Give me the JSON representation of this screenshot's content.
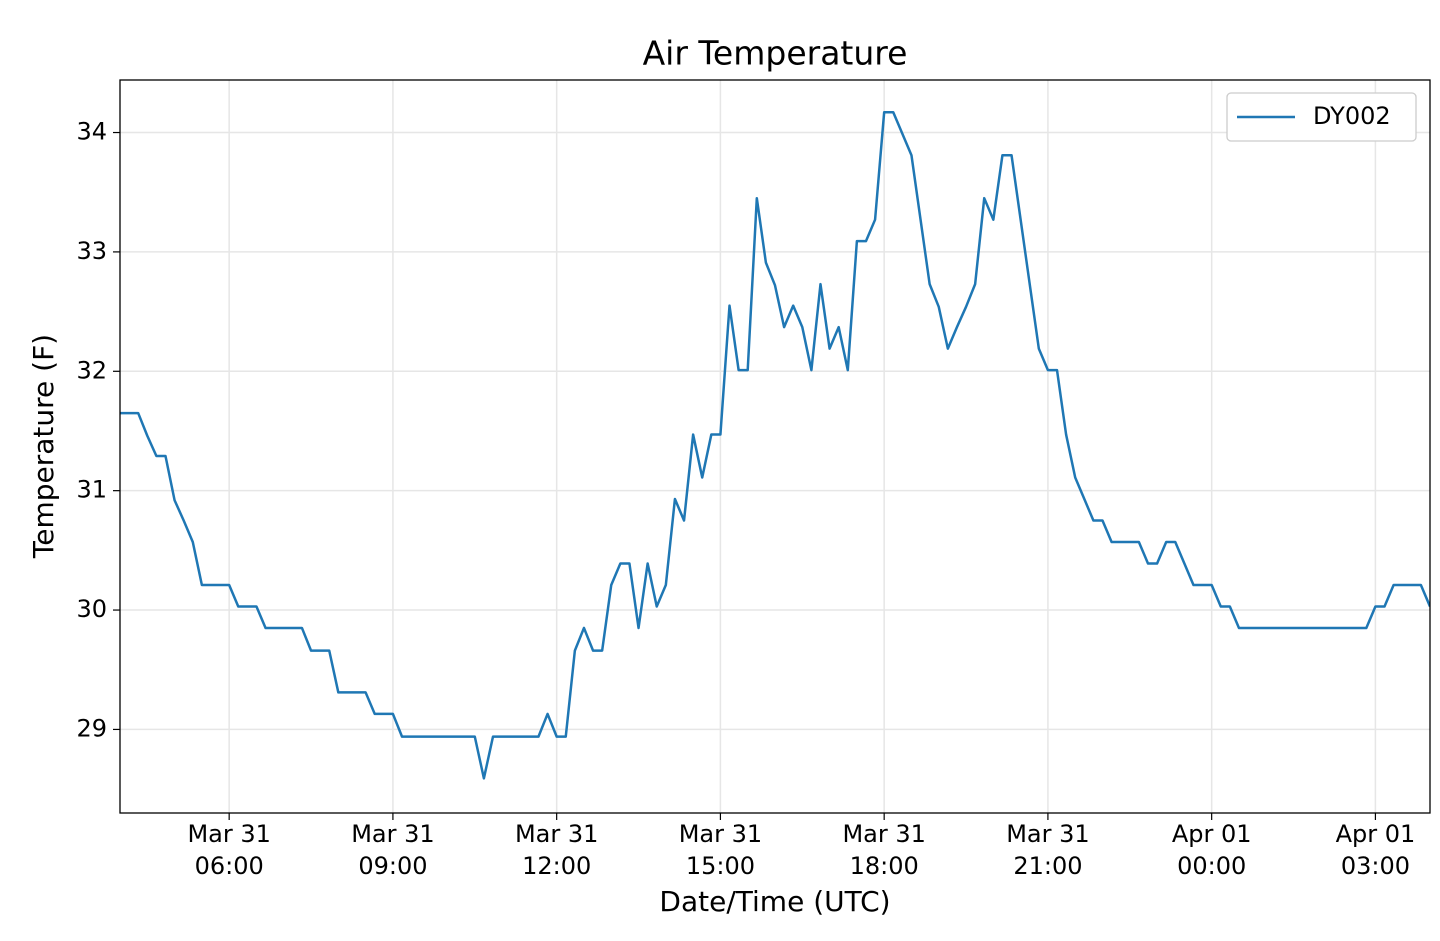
{
  "chart_data": {
    "type": "line",
    "title": "Air Temperature",
    "x_label": "Date/Time (UTC)",
    "y_label": "Temperature (F)",
    "x": [
      "Mar 31 04:00",
      "Mar 31 04:20",
      "Mar 31 04:30",
      "Mar 31 04:40",
      "Mar 31 04:50",
      "Mar 31 05:00",
      "Mar 31 05:10",
      "Mar 31 05:20",
      "Mar 31 05:30",
      "Mar 31 06:00",
      "Mar 31 06:10",
      "Mar 31 06:30",
      "Mar 31 06:40",
      "Mar 31 07:20",
      "Mar 31 07:30",
      "Mar 31 07:50",
      "Mar 31 08:00",
      "Mar 31 08:30",
      "Mar 31 08:40",
      "Mar 31 09:00",
      "Mar 31 09:10",
      "Mar 31 10:30",
      "Mar 31 10:40",
      "Mar 31 10:50",
      "Mar 31 11:40",
      "Mar 31 11:50",
      "Mar 31 12:00",
      "Mar 31 12:10",
      "Mar 31 12:20",
      "Mar 31 12:30",
      "Mar 31 12:40",
      "Mar 31 12:50",
      "Mar 31 13:00",
      "Mar 31 13:10",
      "Mar 31 13:20",
      "Mar 31 13:30",
      "Mar 31 13:40",
      "Mar 31 13:50",
      "Mar 31 14:00",
      "Mar 31 14:10",
      "Mar 31 14:20",
      "Mar 31 14:30",
      "Mar 31 14:40",
      "Mar 31 14:50",
      "Mar 31 15:00",
      "Mar 31 15:10",
      "Mar 31 15:20",
      "Mar 31 15:30",
      "Mar 31 15:40",
      "Mar 31 15:50",
      "Mar 31 16:00",
      "Mar 31 16:10",
      "Mar 31 16:20",
      "Mar 31 16:30",
      "Mar 31 16:40",
      "Mar 31 16:50",
      "Mar 31 17:00",
      "Mar 31 17:10",
      "Mar 31 17:20",
      "Mar 31 17:30",
      "Mar 31 17:40",
      "Mar 31 17:50",
      "Mar 31 18:00",
      "Mar 31 18:10",
      "Mar 31 18:20",
      "Mar 31 18:30",
      "Mar 31 18:40",
      "Mar 31 18:50",
      "Mar 31 19:00",
      "Mar 31 19:10",
      "Mar 31 19:20",
      "Mar 31 19:30",
      "Mar 31 19:40",
      "Mar 31 19:50",
      "Mar 31 20:00",
      "Mar 31 20:10",
      "Mar 31 20:20",
      "Mar 31 20:30",
      "Mar 31 20:40",
      "Mar 31 20:50",
      "Mar 31 21:00",
      "Mar 31 21:10",
      "Mar 31 21:20",
      "Mar 31 21:30",
      "Mar 31 21:40",
      "Mar 31 21:50",
      "Mar 31 22:00",
      "Mar 31 22:10",
      "Mar 31 22:40",
      "Mar 31 22:50",
      "Mar 31 23:00",
      "Mar 31 23:10",
      "Mar 31 23:20",
      "Mar 31 23:30",
      "Mar 31 23:40",
      "Apr 01 00:00",
      "Apr 01 00:10",
      "Apr 01 00:20",
      "Apr 01 00:30",
      "Apr 01 02:50",
      "Apr 01 03:00",
      "Apr 01 03:10",
      "Apr 01 03:20",
      "Apr 01 03:50",
      "Apr 01 04:00"
    ],
    "series": [
      {
        "name": "DY002",
        "color": "#1f77b4",
        "values": [
          31.65,
          31.65,
          31.46,
          31.29,
          31.29,
          30.92,
          30.75,
          30.57,
          30.21,
          30.21,
          30.03,
          30.03,
          29.85,
          29.85,
          29.66,
          29.66,
          29.31,
          29.31,
          29.13,
          29.13,
          28.94,
          28.94,
          28.59,
          28.94,
          28.94,
          29.13,
          28.94,
          28.94,
          29.66,
          29.85,
          29.66,
          29.66,
          30.21,
          30.39,
          30.39,
          29.85,
          30.39,
          30.03,
          30.21,
          30.93,
          30.75,
          31.47,
          31.11,
          31.47,
          31.47,
          32.55,
          32.01,
          32.01,
          33.45,
          32.91,
          32.72,
          32.37,
          32.55,
          32.37,
          32.01,
          32.73,
          32.19,
          32.37,
          32.01,
          33.09,
          33.09,
          33.27,
          34.17,
          34.17,
          33.99,
          33.81,
          33.27,
          32.73,
          32.54,
          32.19,
          32.37,
          32.54,
          32.73,
          33.45,
          33.27,
          33.81,
          33.81,
          33.27,
          32.73,
          32.19,
          32.01,
          32.01,
          31.47,
          31.11,
          30.93,
          30.75,
          30.75,
          30.57,
          30.57,
          30.39,
          30.39,
          30.57,
          30.57,
          30.39,
          30.21,
          30.21,
          30.03,
          30.03,
          29.85,
          29.85,
          30.03,
          30.03,
          30.21,
          30.21,
          30.03
        ]
      }
    ],
    "xlim": [
      "Mar 31 04:00",
      "Apr 01 04:00"
    ],
    "xticks": [
      "Mar 31 06:00",
      "Mar 31 09:00",
      "Mar 31 12:00",
      "Mar 31 15:00",
      "Mar 31 18:00",
      "Mar 31 21:00",
      "Apr 01 00:00",
      "Apr 01 03:00"
    ],
    "ylim": [
      28.3,
      34.44
    ],
    "yticks": [
      29,
      30,
      31,
      32,
      33,
      34
    ],
    "grid": true,
    "legend": "upper right"
  }
}
